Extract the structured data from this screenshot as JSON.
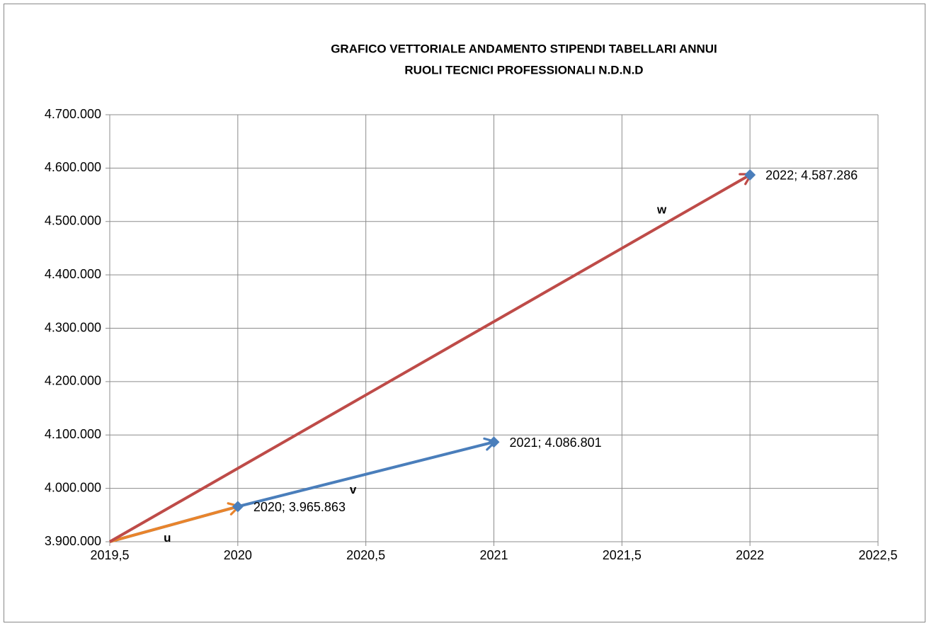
{
  "chart_data": {
    "type": "vector",
    "title": "GRAFICO VETTORIALE ANDAMENTO STIPENDI TABELLARI ANNUI",
    "subtitle": "RUOLI TECNICI PROFESSIONALI N.D.N.D",
    "series": [
      {
        "name": "v",
        "color": "#4a7ebb",
        "x": [
          2019.5,
          2020,
          2021
        ],
        "values": [
          3900000,
          3965863,
          4086801
        ]
      },
      {
        "name": "u",
        "color": "#e8842c",
        "x": [
          2019.5,
          2020
        ],
        "values": [
          3900000,
          3965863
        ]
      },
      {
        "name": "w",
        "color": "#be4b48",
        "x": [
          2019.5,
          2022
        ],
        "values": [
          3900000,
          4587286
        ]
      }
    ],
    "points": {
      "color": "#4a7ebb",
      "x": [
        2020,
        2021,
        2022
      ],
      "values": [
        3965863,
        4086801,
        4587286
      ],
      "value_labels": [
        "2020; 3.965.863",
        "2021; 4.086.801",
        "2022; 4.587.286"
      ]
    },
    "xlim": [
      2019.5,
      2022.5
    ],
    "xticks": [
      {
        "value": 2019.5,
        "label": "2019,5"
      },
      2020,
      {
        "value": 2020.5,
        "label": "2020,5"
      },
      2021,
      {
        "value": 2021.5,
        "label": "2021,5"
      },
      2022,
      {
        "value": 2022.5,
        "label": "2022,5"
      }
    ],
    "ylim": [
      3900000,
      4700000
    ],
    "yticks": [
      {
        "value": 3900000,
        "label": "3.900.000"
      },
      {
        "value": 4000000,
        "label": "4.000.000"
      },
      {
        "value": 4100000,
        "label": "4.100.000"
      },
      {
        "value": 4200000,
        "label": "4.200.000"
      },
      {
        "value": 4300000,
        "label": "4.300.000"
      },
      {
        "value": 4400000,
        "label": "4.400.000"
      },
      {
        "value": 4500000,
        "label": "4.500.000"
      },
      {
        "value": 4600000,
        "label": "4.600.000"
      },
      {
        "value": 4700000,
        "label": "4.700.000"
      }
    ],
    "grid": true
  }
}
